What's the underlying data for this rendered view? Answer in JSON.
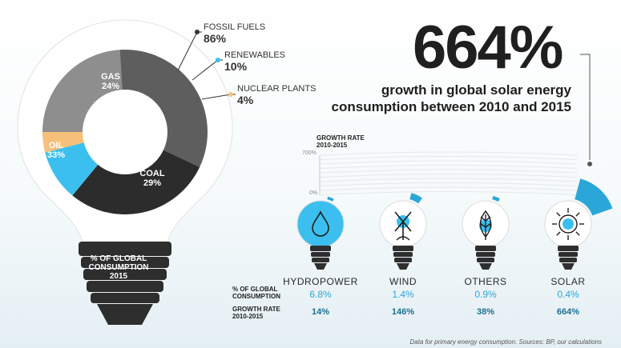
{
  "headline": {
    "value": "664%",
    "line1": "growth in global solar energy",
    "line2": "consumption between 2010 and 2015"
  },
  "chart_data": [
    {
      "type": "pie",
      "label": "% OF GLOBAL CONSUMPTION 2015",
      "slices": [
        {
          "name": "GAS",
          "value": 24,
          "label": "24%",
          "color": "#8e8e8e"
        },
        {
          "name": "OIL",
          "value": 33,
          "label": "33%",
          "color": "#5e5e5e"
        },
        {
          "name": "COAL",
          "value": 29,
          "label": "29%",
          "color": "#2c2c2c"
        },
        {
          "name": "RENEWABLES",
          "value": 10,
          "label": "10%",
          "color": "#3bbfef"
        },
        {
          "name": "NUCLEAR PLANTS",
          "value": 4,
          "label": "4%",
          "color": "#f6c07a"
        }
      ],
      "callouts": [
        {
          "name": "FOSSIL FUELS",
          "value": "86%",
          "color": "#333333"
        },
        {
          "name": "RENEWABLES",
          "value": "10%",
          "color": "#3bbfef"
        },
        {
          "name": "NUCLEAR PLANTS",
          "value": "4%",
          "color": "#f6c07a"
        }
      ]
    },
    {
      "type": "bar",
      "title_line1": "GROWTH RATE",
      "title_line2": "2010-2015",
      "scale_max": "700%",
      "scale_min": "0%",
      "ylim": [
        0,
        700
      ],
      "row_label_share_1": "% OF GLOBAL",
      "row_label_share_2": "CONSUMPTION",
      "row_label_growth_1": "GROWTH RATE",
      "row_label_growth_2": "2010-2015",
      "categories": [
        "HYDROPOWER",
        "WIND",
        "OTHERS",
        "SOLAR"
      ],
      "share_values": [
        6.8,
        1.4,
        0.9,
        0.4
      ],
      "share_labels": [
        "6.8%",
        "1.4%",
        "0.9%",
        "0.4%"
      ],
      "growth_values": [
        14,
        146,
        38,
        664
      ],
      "growth_labels": [
        "14%",
        "146%",
        "38%",
        "664%"
      ],
      "icons": [
        "water-drop-icon",
        "wind-turbine-icon",
        "leaf-icon",
        "sun-icon"
      ]
    }
  ],
  "footer": "Data for primary energy consumption. Sources: BP, our calculations",
  "colors": {
    "accent": "#2aa7d8",
    "bulb": "#2e2e2e",
    "growth_text": "#1c6f91"
  }
}
